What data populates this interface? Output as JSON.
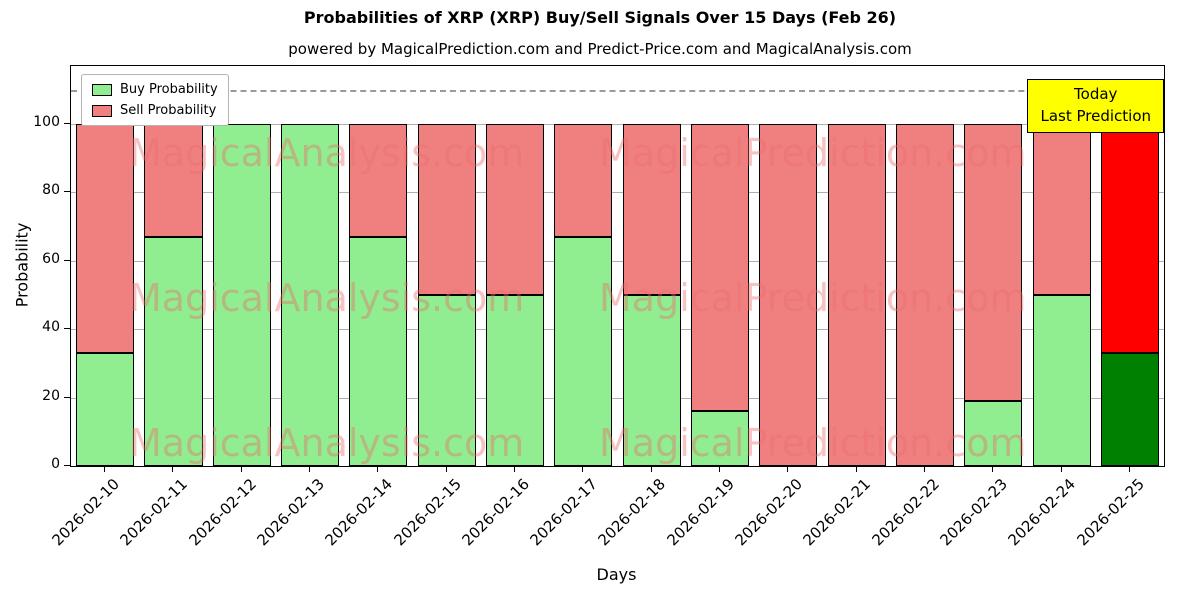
{
  "figure": {
    "title": "Probabilities of XRP (XRP) Buy/Sell Signals Over 15 Days (Feb 26)",
    "subtitle": "powered by MagicalPrediction.com and Predict-Price.com and MagicalAnalysis.com",
    "xlabel": "Days",
    "ylabel": "Probability"
  },
  "annotation_box": {
    "lines": [
      "Today",
      "Last Prediction"
    ],
    "bg": "#FFFF00"
  },
  "watermarks": {
    "left": "MagicalAnalysis.com",
    "right": "MagicalPrediction.com"
  },
  "chart_data": {
    "type": "bar",
    "stacked": true,
    "title": "Probabilities of XRP (XRP) Buy/Sell Signals Over 15 Days (Feb 26)",
    "xlabel": "Days",
    "ylabel": "Probability",
    "categories": [
      "2026-02-10",
      "2026-02-11",
      "2026-02-12",
      "2026-02-13",
      "2026-02-14",
      "2026-02-15",
      "2026-02-16",
      "2026-02-17",
      "2026-02-18",
      "2026-02-19",
      "2026-02-20",
      "2026-02-21",
      "2026-02-22",
      "2026-02-23",
      "2026-02-24",
      "2026-02-25"
    ],
    "series": [
      {
        "name": "Buy Probability",
        "color": "#90EE90",
        "highlight_color": "#008000",
        "values": [
          33,
          67,
          100,
          100,
          67,
          50,
          50,
          67,
          50,
          16,
          0,
          0,
          0,
          19,
          50,
          33
        ]
      },
      {
        "name": "Sell Probability",
        "color": "#F08080",
        "highlight_color": "#FF0000",
        "values": [
          67,
          33,
          0,
          0,
          33,
          50,
          50,
          33,
          50,
          84,
          100,
          100,
          100,
          81,
          50,
          67
        ]
      }
    ],
    "highlight_index": 15,
    "ylim": [
      0,
      117
    ],
    "yticks": [
      0,
      20,
      40,
      60,
      80,
      100
    ],
    "dashed_line_y": 110,
    "grid": true,
    "legend_position": "upper left"
  }
}
